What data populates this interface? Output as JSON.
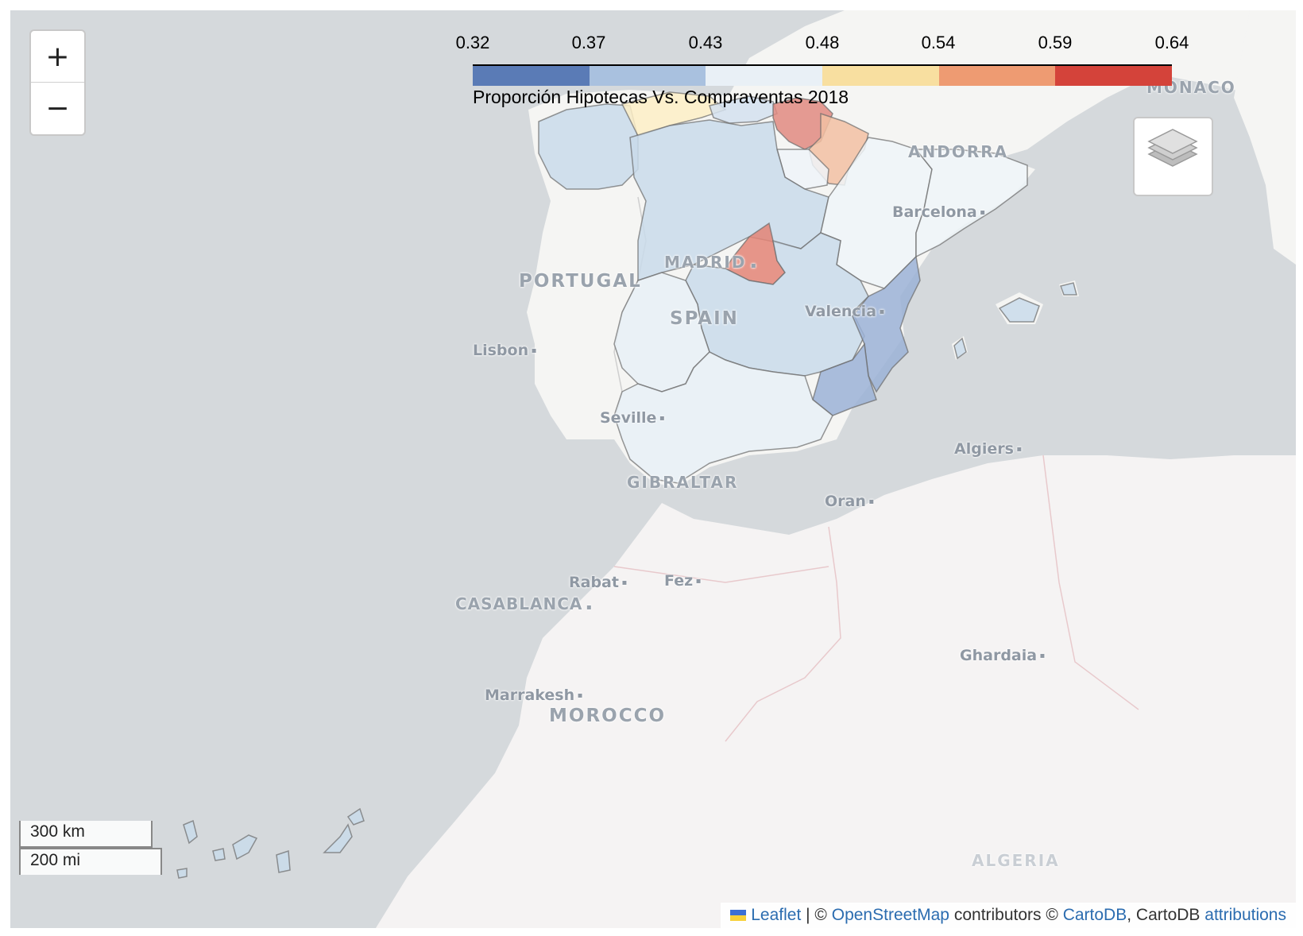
{
  "legend": {
    "ticks": [
      "0.32",
      "0.37",
      "0.43",
      "0.48",
      "0.54",
      "0.59",
      "0.64"
    ],
    "caption": "Proporción Hipotecas Vs. Compraventas 2018",
    "colors": [
      "#5a7bb6",
      "#a9c1df",
      "#e9f0f6",
      "#f8dfa0",
      "#ee9b72",
      "#d4433a"
    ]
  },
  "map_labels": {
    "portugal": "PORTUGAL",
    "spain": "SPAIN",
    "madrid": "MADRID",
    "gibraltar": "GIBRALTAR",
    "andorra": "ANDORRA",
    "monaco": "MONACO",
    "morocco": "MOROCCO",
    "casablanca": "CASABLANCA",
    "algeria": "ALGERIA",
    "lisbon": "Lisbon",
    "seville": "Seville",
    "valencia": "Valencia",
    "barcelona": "Barcelona",
    "algiers": "Algiers",
    "oran": "Oran",
    "rabat": "Rabat",
    "fez": "Fez",
    "marrakesh": "Marrakesh",
    "ghardaia": "Ghardaia"
  },
  "regions": [
    {
      "name": "Galicia",
      "value": 0.41,
      "color": "#c9dbea"
    },
    {
      "name": "Asturias",
      "value": 0.49,
      "color": "#fdeec6"
    },
    {
      "name": "Cantabria",
      "value": 0.42,
      "color": "#d3e1ee"
    },
    {
      "name": "País Vasco",
      "value": 0.61,
      "color": "#e08a80"
    },
    {
      "name": "Navarra",
      "value": 0.55,
      "color": "#f2bfa2"
    },
    {
      "name": "La Rioja",
      "value": 0.45,
      "color": "#eef3f8"
    },
    {
      "name": "Castilla y León",
      "value": 0.41,
      "color": "#c9dbea"
    },
    {
      "name": "Aragón",
      "value": 0.45,
      "color": "#eff4f8"
    },
    {
      "name": "Cataluña",
      "value": 0.45,
      "color": "#eff4f8"
    },
    {
      "name": "Madrid",
      "value": 0.62,
      "color": "#e38476"
    },
    {
      "name": "Castilla-La Mancha",
      "value": 0.41,
      "color": "#c9dbea"
    },
    {
      "name": "Extremadura",
      "value": 0.44,
      "color": "#e8f0f6"
    },
    {
      "name": "Comunidad Valenciana",
      "value": 0.35,
      "color": "#9bb1d6"
    },
    {
      "name": "Murcia",
      "value": 0.35,
      "color": "#9bb1d6"
    },
    {
      "name": "Andalucía",
      "value": 0.44,
      "color": "#e8f0f6"
    },
    {
      "name": "Baleares",
      "value": 0.41,
      "color": "#c9dbea"
    },
    {
      "name": "Canarias",
      "value": 0.41,
      "color": "#c9dbea"
    }
  ],
  "controls": {
    "zoom_in": "+",
    "zoom_out": "−"
  },
  "scale": {
    "km": "300 km",
    "mi": "200 mi"
  },
  "attribution": {
    "leaflet": "Leaflet",
    "sep1": " | © ",
    "osm": "OpenStreetMap",
    "contrib": " contributors © ",
    "cartodb": "CartoDB",
    "sep2": ", CartoDB ",
    "attributions": "attributions"
  }
}
